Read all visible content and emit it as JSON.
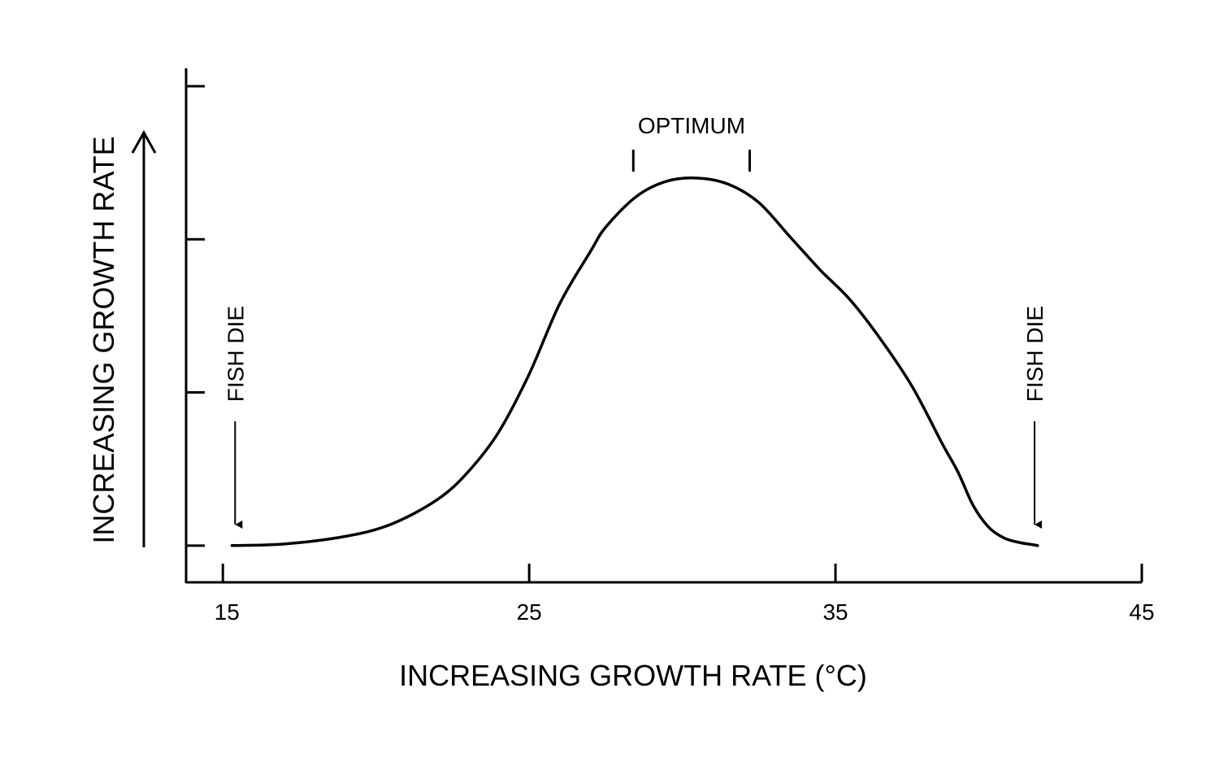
{
  "chart_data": {
    "type": "line",
    "title": "",
    "xlabel": "INCREASING GROWTH RATE (°C)",
    "ylabel": "INCREASING GROWTH RATE",
    "xlim": [
      13.8,
      45
    ],
    "ylim": [
      -0.12,
      1.5
    ],
    "x_ticks": [
      15,
      25,
      35,
      45
    ],
    "x_tick_labels": [
      "15",
      "25",
      "35",
      "45"
    ],
    "y_ticks": [
      0,
      0.5,
      1.0,
      1.5
    ],
    "grid": false,
    "legend": "none",
    "series": [
      {
        "name": "growth rate",
        "x": [
          15.3,
          17,
          19,
          20.5,
          22,
          23,
          24,
          25,
          26,
          27,
          27.5,
          28.5,
          29.5,
          30.5,
          31.5,
          32.5,
          33.5,
          34.5,
          35.5,
          36.5,
          37.5,
          38.5,
          39,
          39.5,
          40,
          40.5,
          41,
          41.5,
          41.6
        ],
        "y": [
          0,
          0.005,
          0.03,
          0.07,
          0.15,
          0.24,
          0.37,
          0.56,
          0.79,
          0.96,
          1.04,
          1.14,
          1.19,
          1.2,
          1.18,
          1.12,
          1.01,
          0.9,
          0.8,
          0.67,
          0.52,
          0.33,
          0.24,
          0.13,
          0.06,
          0.025,
          0.01,
          0.002,
          0
        ]
      }
    ],
    "annotations": {
      "optimum": {
        "label": "OPTIMUM",
        "x_range": [
          28.4,
          32.2
        ],
        "y": 1.2
      },
      "fish_die_left": {
        "label": "FISH DIE",
        "x": 15.4,
        "y_top": 0.44,
        "y_arrow": 0.07
      },
      "fish_die_right": {
        "label": "FISH DIE",
        "x": 41.5,
        "y_top": 0.44,
        "y_arrow": 0.07
      }
    }
  }
}
